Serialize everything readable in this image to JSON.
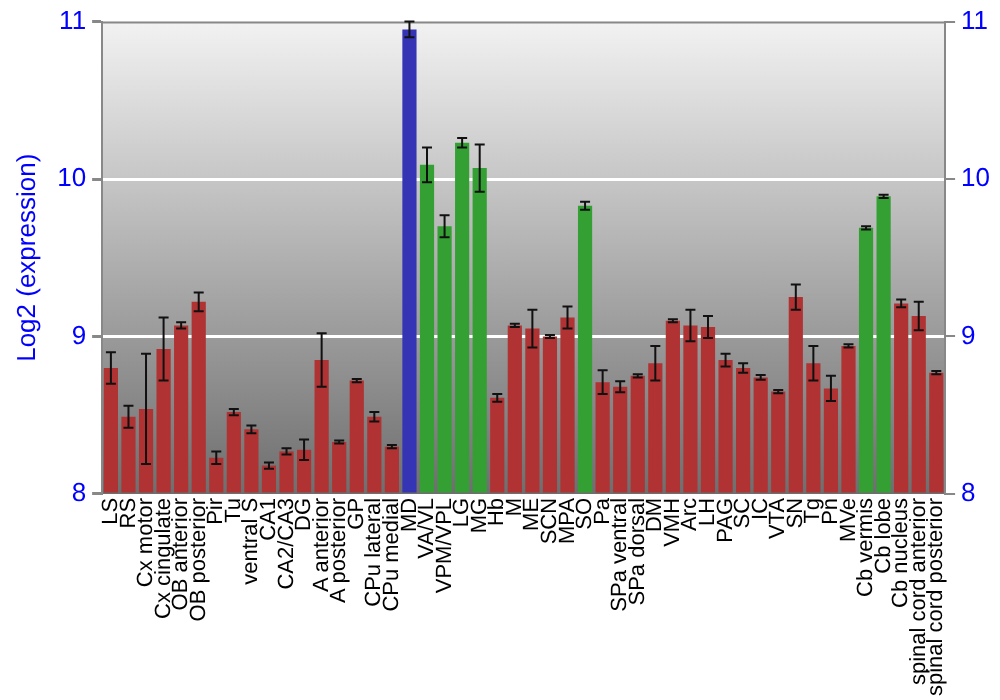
{
  "chart_data": {
    "type": "bar",
    "ylabel": "Log2 (expression)",
    "categories": [
      "LS",
      "RS",
      "Cx motor",
      "Cx cingulate",
      "OB anterior",
      "OB posterior",
      "Pir",
      "Tu",
      "ventral S",
      "CA1",
      "CA2/CA3",
      "DG",
      "A anterior",
      "A posterior",
      "GP",
      "CPu lateral",
      "CPu medial",
      "MD",
      "VA/VL",
      "VPM/VPL",
      "LG",
      "MG",
      "Hb",
      "M",
      "ME",
      "SCN",
      "MPA",
      "SO",
      "Pa",
      "SPa ventral",
      "SPa dorsal",
      "DM",
      "VMH",
      "Arc",
      "LH",
      "PAG",
      "SC",
      "IC",
      "VTA",
      "SN",
      "Tg",
      "Pn",
      "MVe",
      "Cb vermis",
      "Cb lobe",
      "Cb nucleus",
      "spinal cord anterior",
      "spinal cord posterior"
    ],
    "values": [
      8.8,
      8.49,
      8.54,
      8.92,
      9.07,
      9.22,
      8.23,
      8.52,
      8.41,
      8.18,
      8.27,
      8.28,
      8.85,
      8.33,
      8.72,
      8.49,
      8.3,
      10.95,
      10.09,
      9.7,
      10.23,
      10.07,
      8.61,
      9.07,
      9.05,
      9.0,
      9.12,
      9.83,
      8.71,
      8.68,
      8.75,
      8.83,
      9.1,
      9.07,
      9.06,
      8.85,
      8.8,
      8.74,
      8.65,
      9.25,
      8.83,
      8.67,
      8.94,
      9.69,
      9.89,
      9.21,
      9.13,
      8.77
    ],
    "errors": [
      0.1,
      0.07,
      0.35,
      0.2,
      0.02,
      0.06,
      0.04,
      0.02,
      0.025,
      0.02,
      0.02,
      0.065,
      0.17,
      0.01,
      0.01,
      0.03,
      0.01,
      0.05,
      0.11,
      0.07,
      0.03,
      0.15,
      0.025,
      0.01,
      0.12,
      0.01,
      0.07,
      0.025,
      0.075,
      0.035,
      0.01,
      0.11,
      0.01,
      0.1,
      0.07,
      0.04,
      0.03,
      0.015,
      0.01,
      0.08,
      0.11,
      0.08,
      0.01,
      0.01,
      0.01,
      0.025,
      0.09,
      0.01
    ],
    "colors": [
      "#b03232",
      "#b03232",
      "#b03232",
      "#b03232",
      "#b03232",
      "#b03232",
      "#b03232",
      "#b03232",
      "#b03232",
      "#b03232",
      "#b03232",
      "#b03232",
      "#b03232",
      "#b03232",
      "#b03232",
      "#b03232",
      "#b03232",
      "#3434b4",
      "#34a034",
      "#34a034",
      "#34a034",
      "#34a034",
      "#b03232",
      "#b03232",
      "#b03232",
      "#b03232",
      "#b03232",
      "#34a034",
      "#b03232",
      "#b03232",
      "#b03232",
      "#b03232",
      "#b03232",
      "#b03232",
      "#b03232",
      "#b03232",
      "#b03232",
      "#b03232",
      "#b03232",
      "#b03232",
      "#b03232",
      "#b03232",
      "#b03232",
      "#34a034",
      "#34a034",
      "#b03232",
      "#b03232",
      "#b03232"
    ],
    "ylim": [
      8,
      11
    ],
    "yticks": [
      8,
      9,
      10,
      11
    ],
    "y2lim": [
      8,
      11
    ],
    "y2ticks": [
      8,
      9,
      10,
      11
    ],
    "grid": "y",
    "legend": false
  }
}
